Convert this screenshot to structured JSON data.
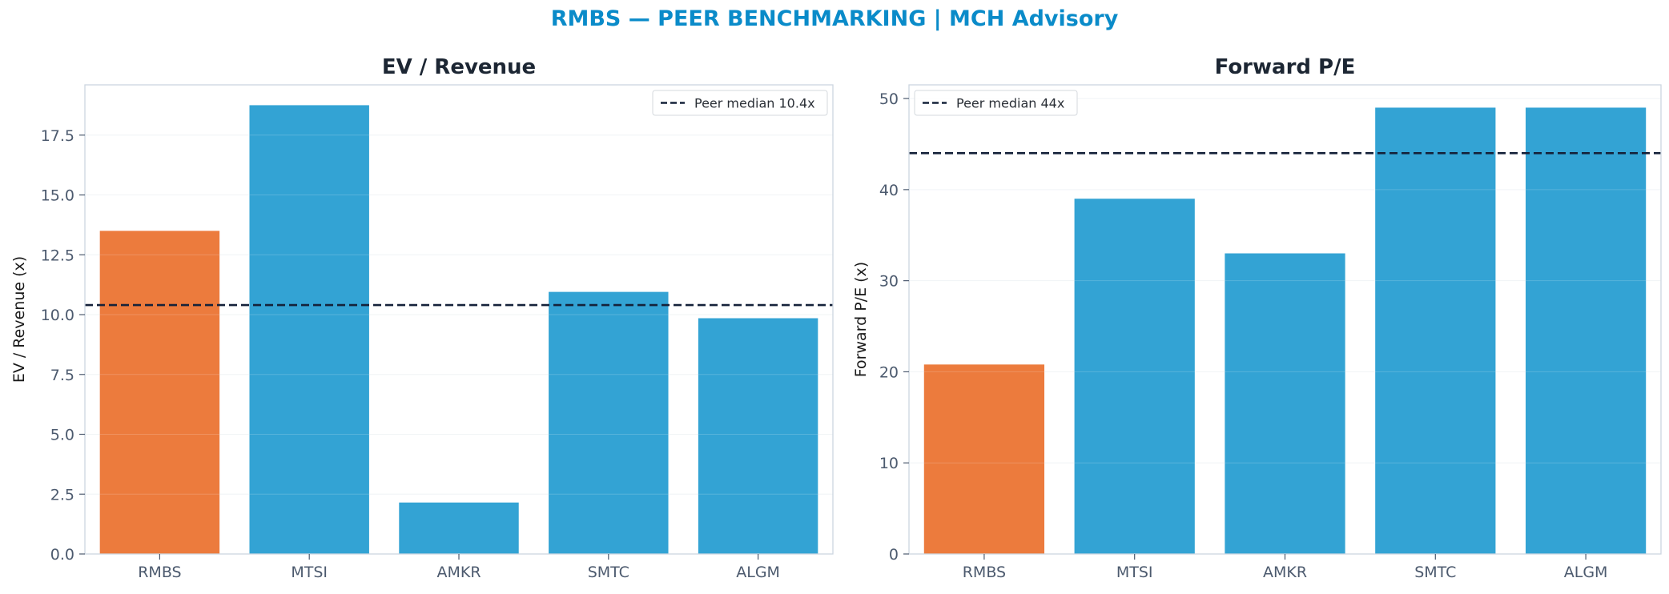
{
  "figure": {
    "title": "RMBS — PEER BENCHMARKING | MCH Advisory",
    "colors": {
      "title": "#0a8bc9",
      "highlight": "#ec7b3d",
      "peer": "#33a3d4",
      "median_line": "#15223a",
      "axis_text": "#4c5a6e",
      "panel_title": "#1c2633",
      "spine": "#cdd6e0",
      "grid": "#eef2f5"
    }
  },
  "chart_data": [
    {
      "type": "bar",
      "title": "EV / Revenue",
      "ylabel": "EV / Revenue (x)",
      "categories": [
        "RMBS",
        "MTSI",
        "AMKR",
        "SMTC",
        "ALGM"
      ],
      "values": [
        13.5,
        18.75,
        2.15,
        10.95,
        9.85
      ],
      "highlight": "RMBS",
      "ylim": [
        0,
        19.6
      ],
      "yticks": [
        0,
        2.5,
        5,
        7.5,
        10,
        12.5,
        15,
        17.5
      ],
      "ytick_labels": [
        "0.0",
        "2.5",
        "5.0",
        "7.5",
        "10.0",
        "12.5",
        "15.0",
        "17.5"
      ],
      "median": 10.4,
      "legend": "Peer median 10.4x",
      "legend_position": "top-right",
      "grid": true
    },
    {
      "type": "bar",
      "title": "Forward P/E",
      "ylabel": "Forward P/E (x)",
      "categories": [
        "RMBS",
        "MTSI",
        "AMKR",
        "SMTC",
        "ALGM"
      ],
      "values": [
        20.8,
        39,
        33,
        49,
        49
      ],
      "highlight": "RMBS",
      "ylim": [
        0,
        51.5
      ],
      "yticks": [
        0,
        10,
        20,
        30,
        40,
        50
      ],
      "ytick_labels": [
        "0",
        "10",
        "20",
        "30",
        "40",
        "50"
      ],
      "median": 44,
      "legend": "Peer median 44x",
      "legend_position": "top-left",
      "grid": true
    }
  ]
}
